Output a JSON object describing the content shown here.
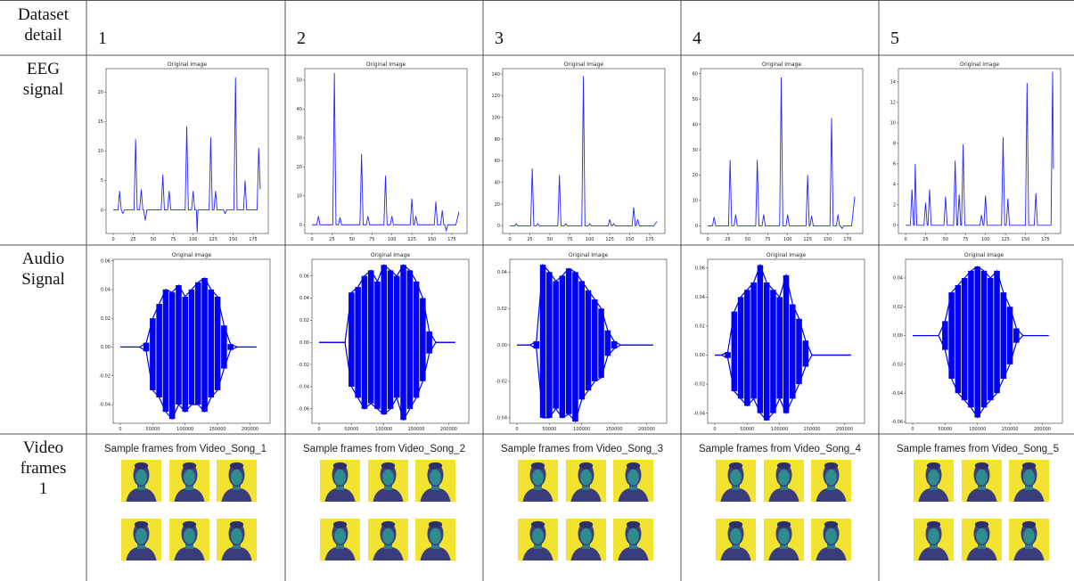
{
  "header": {
    "label": "Dataset detail",
    "columns": [
      "1",
      "2",
      "3",
      "4",
      "5"
    ]
  },
  "row_labels": [
    "EEG signal",
    "Audio Signal",
    "Video frames 1"
  ],
  "eeg": [
    {
      "title": "Original Image",
      "color": "#2424ff",
      "xlim": [
        -9,
        194
      ],
      "ylim": [
        -4,
        24
      ],
      "xticks": [
        0,
        25,
        50,
        75,
        100,
        125,
        150,
        175
      ],
      "yticks": [
        0,
        5,
        10,
        15,
        20
      ],
      "x": [
        0,
        6,
        8,
        10,
        12,
        14,
        26,
        28,
        30,
        33,
        35,
        37,
        38,
        40,
        42,
        60,
        62,
        64,
        68,
        70,
        72,
        90,
        92,
        94,
        98,
        100,
        102,
        104,
        105,
        106,
        120,
        122,
        124,
        126,
        128,
        130,
        138,
        140,
        142,
        151,
        153,
        155,
        163,
        165,
        167,
        180,
        182,
        184
      ],
      "values": [
        0,
        0,
        3.2,
        0,
        -0.6,
        0,
        0,
        12,
        0,
        0,
        3.5,
        0,
        0,
        -1.8,
        0,
        0,
        6,
        0,
        0,
        3.2,
        0,
        0,
        14.2,
        0,
        0,
        3.2,
        0,
        0,
        -3.8,
        0,
        0,
        12.3,
        0,
        0,
        3.2,
        0,
        0,
        -0.6,
        0,
        0,
        22.5,
        0,
        0,
        5,
        0,
        0,
        10.5,
        3.5
      ]
    },
    {
      "title": "Original Image",
      "color": "#2424ff",
      "xlim": [
        -9,
        194
      ],
      "ylim": [
        -3,
        54
      ],
      "xticks": [
        0,
        25,
        50,
        75,
        100,
        125,
        150,
        175
      ],
      "yticks": [
        0,
        10,
        20,
        30,
        40,
        50
      ],
      "x": [
        0,
        6,
        8,
        10,
        26,
        28,
        30,
        33,
        35,
        37,
        60,
        62,
        64,
        68,
        70,
        72,
        90,
        92,
        94,
        98,
        100,
        102,
        123,
        125,
        127,
        128,
        130,
        132,
        153,
        155,
        157,
        161,
        163,
        165,
        166,
        168,
        170,
        180,
        184
      ],
      "values": [
        0,
        0,
        3,
        0,
        0,
        52.5,
        0,
        0,
        2.5,
        0,
        0,
        24.5,
        0,
        0,
        3,
        0,
        0,
        17,
        0,
        0,
        3,
        0,
        0,
        9,
        0,
        0,
        3,
        0,
        0,
        8,
        0,
        0,
        5,
        0,
        0,
        -2,
        0,
        0,
        4.5
      ]
    },
    {
      "title": "Original Image",
      "color": "#2424ff",
      "xlim": [
        -9,
        194
      ],
      "ylim": [
        -7,
        145
      ],
      "xticks": [
        0,
        25,
        50,
        75,
        100,
        125,
        150,
        175
      ],
      "yticks": [
        0,
        20,
        40,
        60,
        80,
        100,
        120,
        140
      ],
      "x": [
        0,
        6,
        8,
        10,
        26,
        28,
        30,
        33,
        35,
        37,
        60,
        62,
        64,
        68,
        70,
        72,
        90,
        92,
        94,
        98,
        100,
        102,
        123,
        125,
        127,
        128,
        130,
        132,
        153,
        155,
        157,
        158,
        160,
        162,
        180,
        184
      ],
      "values": [
        0,
        0,
        2,
        0,
        0,
        53,
        0,
        0,
        2,
        0,
        0,
        47,
        0,
        0,
        2,
        0,
        0,
        138,
        0,
        0,
        2,
        0,
        0,
        6,
        0,
        0,
        2,
        0,
        0,
        17,
        0,
        0,
        6,
        0,
        0,
        4
      ]
    },
    {
      "title": "Original Image",
      "color": "#2424ff",
      "xlim": [
        -9,
        194
      ],
      "ylim": [
        -3,
        62
      ],
      "xticks": [
        0,
        25,
        50,
        75,
        100,
        125,
        150,
        175
      ],
      "yticks": [
        0,
        10,
        20,
        30,
        40,
        50,
        60
      ],
      "x": [
        0,
        6,
        8,
        10,
        26,
        28,
        30,
        33,
        35,
        37,
        60,
        62,
        64,
        68,
        70,
        72,
        90,
        92,
        94,
        98,
        100,
        102,
        123,
        125,
        127,
        128,
        130,
        132,
        153,
        155,
        157,
        161,
        163,
        165,
        166,
        168,
        170,
        180,
        184
      ],
      "values": [
        0,
        0,
        3.5,
        0,
        0,
        26,
        0,
        0,
        4.5,
        0,
        0,
        26,
        0,
        0,
        4.5,
        0,
        0,
        58.5,
        0,
        0,
        4.5,
        0,
        0,
        20,
        0,
        0,
        4,
        0,
        0,
        42.5,
        0,
        0,
        4.5,
        0,
        0,
        -1,
        0,
        0,
        11.5
      ]
    },
    {
      "title": "Original Image",
      "color": "#2424ff",
      "xlim": [
        -9,
        194
      ],
      "ylim": [
        -0.8,
        15.3
      ],
      "xticks": [
        0,
        25,
        50,
        75,
        100,
        125,
        150,
        175
      ],
      "yticks": [
        0,
        2,
        4,
        6,
        8,
        10,
        12,
        14
      ],
      "x": [
        0,
        6,
        8,
        10,
        11,
        12,
        14,
        23,
        25,
        27,
        28,
        30,
        32,
        48,
        50,
        52,
        60,
        62,
        64,
        65,
        67,
        69,
        70,
        72,
        74,
        93,
        95,
        97,
        98,
        100,
        102,
        120,
        122,
        124,
        126,
        128,
        130,
        150,
        152,
        154,
        161,
        163,
        165,
        182,
        184,
        185
      ],
      "values": [
        0,
        0,
        3.5,
        0,
        0,
        6,
        0,
        0,
        2.2,
        0,
        0,
        3.5,
        0,
        0,
        2.8,
        0,
        0,
        6.3,
        0,
        0,
        3,
        0,
        0,
        7.9,
        0,
        0,
        1,
        0,
        0,
        2.9,
        0,
        0,
        8.6,
        0,
        0,
        2.6,
        0,
        0,
        13.9,
        0,
        0,
        3.1,
        0,
        0,
        15,
        5.5
      ]
    }
  ],
  "audio": [
    {
      "title": "Original Image",
      "color": "#0000f5",
      "xlim": [
        -11000,
        231000
      ],
      "ylim": [
        -0.053,
        0.061
      ],
      "xticks": [
        0,
        50000,
        100000,
        150000,
        200000
      ],
      "yticks": [
        -0.04,
        -0.02,
        {
          "value": 0,
          "label": "0.00"
        },
        0.02,
        0.04,
        0.06
      ],
      "x": [
        0,
        10000,
        20000,
        30000,
        40000,
        50000,
        60000,
        70000,
        80000,
        90000,
        100000,
        110000,
        120000,
        130000,
        140000,
        150000,
        160000,
        170000,
        180000,
        190000,
        200000,
        210000
      ],
      "upper": [
        0,
        0,
        0,
        0,
        0.003,
        0.02,
        0.03,
        0.04,
        0.038,
        0.043,
        0.035,
        0.04,
        0.045,
        0.048,
        0.04,
        0.035,
        0.015,
        0.002,
        0,
        0,
        0,
        0
      ],
      "lower": [
        0,
        0,
        0,
        0,
        -0.003,
        -0.03,
        -0.035,
        -0.045,
        -0.05,
        -0.04,
        -0.045,
        -0.04,
        -0.04,
        -0.045,
        -0.035,
        -0.03,
        -0.015,
        -0.002,
        0,
        0,
        0,
        0
      ]
    },
    {
      "title": "Original Image",
      "color": "#0000f5",
      "xlim": [
        -11000,
        231000
      ],
      "ylim": [
        -0.073,
        0.075
      ],
      "xticks": [
        0,
        50000,
        100000,
        150000,
        200000
      ],
      "yticks": [
        -0.06,
        -0.04,
        -0.02,
        {
          "value": 0,
          "label": "0.00"
        },
        0.02,
        0.04,
        0.06
      ],
      "x": [
        0,
        10000,
        20000,
        30000,
        40000,
        50000,
        60000,
        70000,
        80000,
        90000,
        100000,
        110000,
        120000,
        130000,
        140000,
        150000,
        160000,
        170000,
        180000,
        190000,
        200000,
        210000
      ],
      "upper": [
        0,
        0,
        0,
        0,
        0,
        0.045,
        0.05,
        0.06,
        0.065,
        0.055,
        0.07,
        0.065,
        0.06,
        0.07,
        0.065,
        0.055,
        0.04,
        0.01,
        0,
        0,
        0,
        0
      ],
      "lower": [
        0,
        0,
        0,
        0,
        0,
        -0.04,
        -0.05,
        -0.06,
        -0.055,
        -0.06,
        -0.065,
        -0.06,
        -0.05,
        -0.07,
        -0.06,
        -0.05,
        -0.035,
        -0.01,
        0,
        0,
        0,
        0
      ]
    },
    {
      "title": "Original Image",
      "color": "#0000f5",
      "xlim": [
        -11000,
        231000
      ],
      "ylim": [
        -0.043,
        0.047
      ],
      "xticks": [
        0,
        50000,
        100000,
        150000,
        200000
      ],
      "yticks": [
        -0.04,
        -0.02,
        {
          "value": 0,
          "label": "0.00"
        },
        0.02,
        0.04
      ],
      "x": [
        0,
        10000,
        20000,
        30000,
        40000,
        50000,
        60000,
        70000,
        80000,
        90000,
        100000,
        110000,
        120000,
        130000,
        140000,
        150000,
        160000,
        170000,
        180000,
        190000,
        200000,
        210000
      ],
      "upper": [
        0,
        0,
        0,
        0.002,
        0.044,
        0.04,
        0.035,
        0.038,
        0.042,
        0.04,
        0.035,
        0.03,
        0.025,
        0.02,
        0.008,
        0.002,
        0,
        0,
        0,
        0,
        0,
        0
      ],
      "lower": [
        0,
        0,
        0,
        -0.002,
        -0.04,
        -0.04,
        -0.035,
        -0.04,
        -0.038,
        -0.042,
        -0.03,
        -0.025,
        -0.02,
        -0.018,
        -0.006,
        -0.002,
        0,
        0,
        0,
        0,
        0,
        0
      ]
    },
    {
      "title": "Original Image",
      "color": "#0000f5",
      "xlim": [
        -11000,
        231000
      ],
      "ylim": [
        -0.047,
        0.066
      ],
      "xticks": [
        0,
        50000,
        100000,
        150000,
        200000
      ],
      "yticks": [
        -0.04,
        -0.02,
        {
          "value": 0,
          "label": "0.00"
        },
        0.02,
        0.04,
        0.06
      ],
      "x": [
        0,
        10000,
        20000,
        30000,
        40000,
        50000,
        60000,
        70000,
        80000,
        90000,
        100000,
        110000,
        120000,
        130000,
        140000,
        150000,
        160000,
        170000,
        180000,
        190000,
        200000,
        210000
      ],
      "upper": [
        0,
        0,
        0.002,
        0.03,
        0.04,
        0.045,
        0.05,
        0.062,
        0.05,
        0.045,
        0.04,
        0.055,
        0.035,
        0.025,
        0.01,
        0,
        0,
        0,
        0,
        0,
        0,
        0
      ],
      "lower": [
        0,
        0,
        -0.002,
        -0.025,
        -0.03,
        -0.035,
        -0.03,
        -0.04,
        -0.045,
        -0.04,
        -0.03,
        -0.04,
        -0.03,
        -0.02,
        -0.008,
        0,
        0,
        0,
        0,
        0,
        0,
        0
      ]
    },
    {
      "title": "Original Image",
      "color": "#0000f5",
      "xlim": [
        -11000,
        231000
      ],
      "ylim": [
        -0.061,
        0.053
      ],
      "xticks": [
        0,
        50000,
        100000,
        150000,
        200000
      ],
      "yticks": [
        -0.06,
        -0.04,
        -0.02,
        {
          "value": 0,
          "label": "0.00"
        },
        0.02,
        0.04
      ],
      "x": [
        0,
        10000,
        20000,
        30000,
        40000,
        50000,
        60000,
        70000,
        80000,
        90000,
        100000,
        110000,
        120000,
        130000,
        140000,
        150000,
        160000,
        170000,
        180000,
        190000,
        200000,
        210000
      ],
      "upper": [
        0,
        0,
        0,
        0,
        0,
        0.01,
        0.03,
        0.035,
        0.04,
        0.045,
        0.048,
        0.045,
        0.04,
        0.045,
        0.03,
        0.02,
        0.005,
        0,
        0,
        0,
        0,
        0
      ],
      "lower": [
        0,
        0,
        0,
        0,
        0,
        -0.01,
        -0.03,
        -0.04,
        -0.045,
        -0.05,
        -0.057,
        -0.05,
        -0.045,
        -0.04,
        -0.03,
        -0.02,
        -0.005,
        0,
        0,
        0,
        0,
        0
      ]
    }
  ],
  "video": [
    {
      "caption": "Sample frames from Video_Song_1"
    },
    {
      "caption": "Sample frames from Video_Song_2"
    },
    {
      "caption": "Sample frames from Video_Song_3"
    },
    {
      "caption": "Sample frames from Video_Song_4"
    },
    {
      "caption": "Sample frames from Video_Song_5"
    }
  ]
}
